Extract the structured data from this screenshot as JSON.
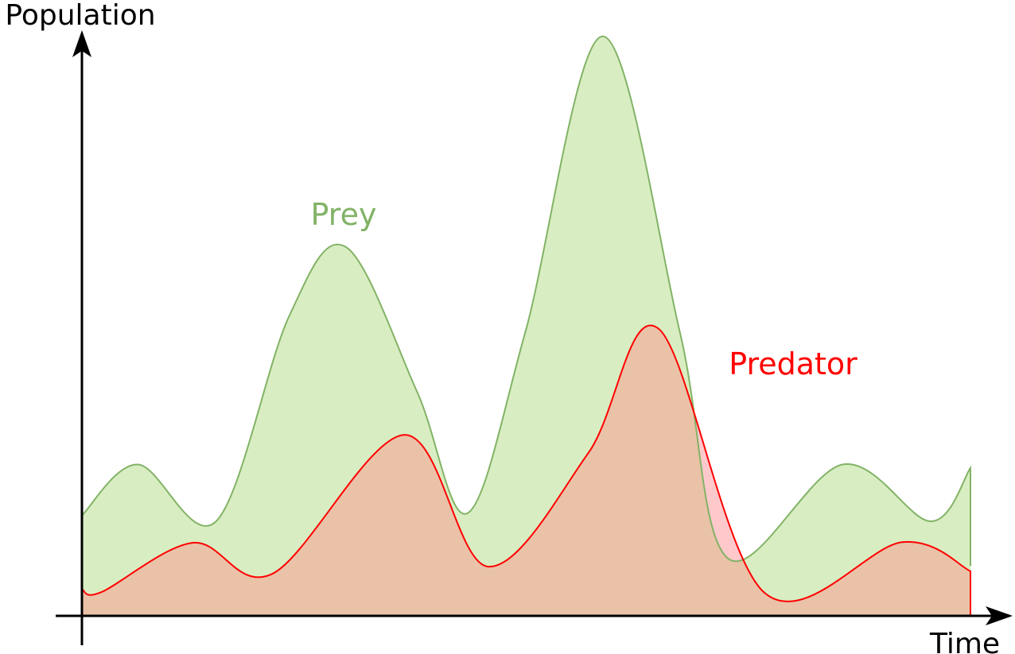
{
  "chart_data": {
    "type": "area",
    "xlabel": "Time",
    "ylabel": "Population",
    "xlim": [
      0,
      100
    ],
    "ylim": [
      0,
      100
    ],
    "grid": false,
    "legend": "inline labels",
    "series": [
      {
        "name": "Prey",
        "line_color": "#82b366",
        "fill_color": "#d9edc2",
        "points": [
          [
            0,
            17.3
          ],
          [
            6.3,
            26.1
          ],
          [
            15.1,
            16.3
          ],
          [
            23.3,
            51.6
          ],
          [
            29.7,
            63.6
          ],
          [
            37.7,
            38.7
          ],
          [
            43.4,
            17.7
          ],
          [
            49.9,
            48.9
          ],
          [
            58.6,
            99.9
          ],
          [
            67.3,
            48.9
          ],
          [
            72.7,
            9.9
          ],
          [
            85.6,
            26.1
          ],
          [
            95.5,
            16.3
          ],
          [
            100,
            25.5
          ],
          [
            100,
            8.6
          ]
        ]
      },
      {
        "name": "Predator",
        "line_color": "#ff0000",
        "fill_color": "#ffc9cc",
        "points": [
          [
            0,
            4.6
          ],
          [
            2.2,
            4.1
          ],
          [
            12.5,
            12.6
          ],
          [
            21.5,
            7.3
          ],
          [
            36.3,
            31.2
          ],
          [
            45.7,
            8.5
          ],
          [
            57.0,
            28.1
          ],
          [
            64.9,
            49.5
          ],
          [
            76.8,
            4.0
          ],
          [
            92.3,
            12.7
          ],
          [
            100,
            7.7
          ],
          [
            100,
            0
          ]
        ]
      }
    ]
  },
  "labels": {
    "ylabel": "Population",
    "xlabel": "Time",
    "prey": "Prey",
    "predator": "Predator"
  }
}
